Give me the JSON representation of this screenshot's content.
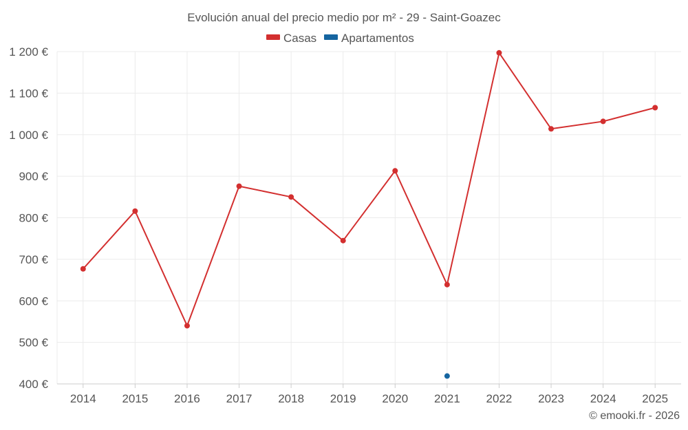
{
  "chart_data": {
    "type": "line",
    "title": "Evolución anual del precio medio por m² - 29 - Saint-Goazec",
    "categories": [
      "2014",
      "2015",
      "2016",
      "2017",
      "2018",
      "2019",
      "2020",
      "2021",
      "2022",
      "2023",
      "2024",
      "2025"
    ],
    "series": [
      {
        "name": "Casas",
        "color": "#d32f2f",
        "values": [
          677,
          816,
          540,
          876,
          850,
          745,
          913,
          639,
          1197,
          1014,
          1032,
          1065
        ]
      },
      {
        "name": "Apartamentos",
        "color": "#1565a0",
        "values": [
          null,
          null,
          null,
          null,
          null,
          null,
          null,
          419,
          null,
          null,
          null,
          null
        ]
      }
    ],
    "ylim": [
      400,
      1200
    ],
    "yticks": [
      400,
      500,
      600,
      700,
      800,
      900,
      1000,
      1100,
      1200
    ],
    "ytick_labels": [
      "400 €",
      "500 €",
      "600 €",
      "700 €",
      "800 €",
      "900 €",
      "1 000 €",
      "1 100 €",
      "1 200 €"
    ],
    "xlabel": "",
    "ylabel": "",
    "legend_position": "top-center",
    "credit": "© emooki.fr - 2026"
  }
}
